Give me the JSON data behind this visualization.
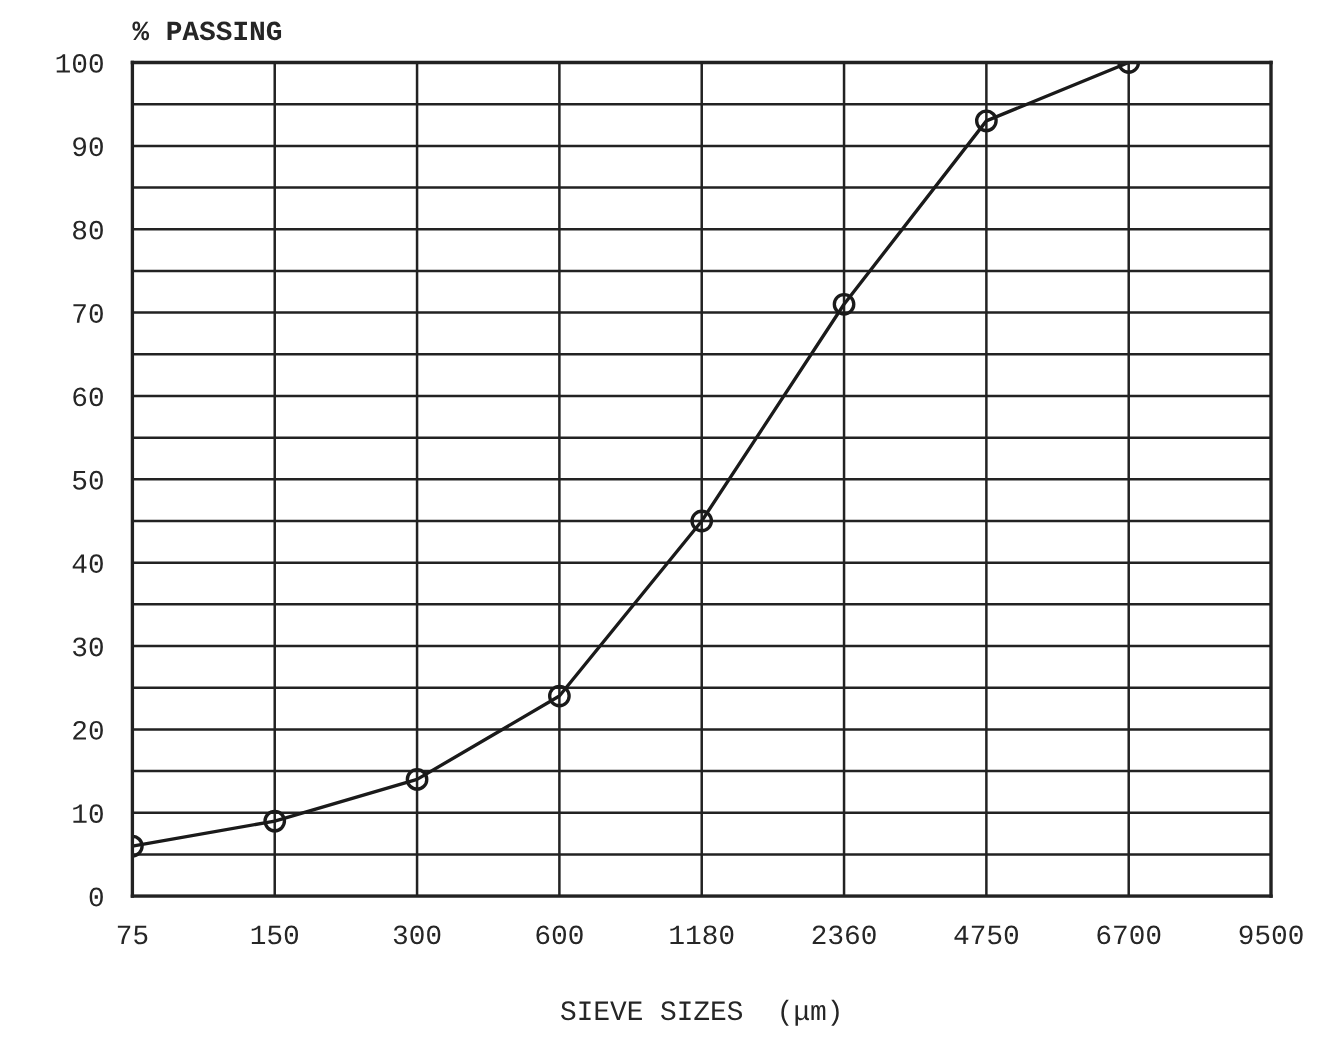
{
  "chart_data": {
    "type": "line",
    "xlabel": "SIEVE SIZES  (μm)",
    "ylabel": "% PASSING",
    "categories": [
      "75",
      "150",
      "300",
      "600",
      "1180",
      "2360",
      "4750",
      "6700",
      "9500"
    ],
    "series": [
      {
        "color": "#1a1a1a",
        "values": [
          6,
          9,
          14,
          24,
          45,
          71,
          93,
          100,
          null
        ]
      }
    ],
    "ylim": [
      0,
      100
    ],
    "yticks": [
      0,
      {
        "value": 5,
        "label": null
      },
      10,
      {
        "value": 15,
        "label": null
      },
      20,
      {
        "value": 25,
        "label": null
      },
      30,
      {
        "value": 35,
        "label": null
      },
      40,
      {
        "value": 45,
        "label": null
      },
      50,
      {
        "value": 55,
        "label": null
      },
      60,
      {
        "value": 65,
        "label": null
      },
      70,
      {
        "value": 75,
        "label": null
      },
      80,
      {
        "value": 85,
        "label": null
      },
      90,
      {
        "value": 95,
        "label": null
      },
      100
    ],
    "grid": true,
    "marker": "circle",
    "line_style": "solid",
    "legend": false
  }
}
